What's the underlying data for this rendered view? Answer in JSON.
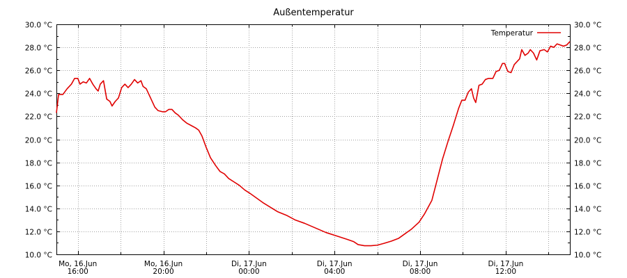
{
  "chart_data": {
    "type": "line",
    "title": "Außentemperatur",
    "x_ticks": [
      {
        "day": "Mo, 16.Jun",
        "time": "16:00",
        "t": 0
      },
      {
        "day": "Mo, 16.Jun",
        "time": "20:00",
        "t": 4
      },
      {
        "day": "Di, 17.Jun",
        "time": "00:00",
        "t": 8
      },
      {
        "day": "Di, 17.Jun",
        "time": "04:00",
        "t": 12
      },
      {
        "day": "Di, 17.Jun",
        "time": "08:00",
        "t": 16
      },
      {
        "day": "Di, 17.Jun",
        "time": "12:00",
        "t": 20
      }
    ],
    "xlim": [
      -1,
      23
    ],
    "y_unit": "°C",
    "ylim": [
      10,
      30
    ],
    "y_tick_step": 2,
    "grid": true,
    "legend_position": "top-right",
    "line_color": "#e00000",
    "series": [
      {
        "name": "Temperatur",
        "points": [
          [
            -1.0,
            22.3
          ],
          [
            -0.9,
            23.9
          ],
          [
            -0.7,
            23.9
          ],
          [
            -0.5,
            24.4
          ],
          [
            -0.3,
            24.8
          ],
          [
            -0.15,
            25.3
          ],
          [
            0.0,
            25.3
          ],
          [
            0.1,
            24.8
          ],
          [
            0.25,
            25.0
          ],
          [
            0.4,
            24.9
          ],
          [
            0.55,
            25.3
          ],
          [
            0.7,
            24.8
          ],
          [
            0.85,
            24.4
          ],
          [
            0.95,
            24.2
          ],
          [
            1.05,
            24.8
          ],
          [
            1.2,
            25.1
          ],
          [
            1.35,
            23.5
          ],
          [
            1.5,
            23.3
          ],
          [
            1.6,
            22.9
          ],
          [
            1.75,
            23.3
          ],
          [
            1.9,
            23.6
          ],
          [
            2.05,
            24.5
          ],
          [
            2.2,
            24.8
          ],
          [
            2.35,
            24.5
          ],
          [
            2.5,
            24.8
          ],
          [
            2.65,
            25.2
          ],
          [
            2.8,
            24.9
          ],
          [
            2.95,
            25.1
          ],
          [
            3.05,
            24.6
          ],
          [
            3.2,
            24.4
          ],
          [
            3.4,
            23.6
          ],
          [
            3.6,
            22.8
          ],
          [
            3.75,
            22.5
          ],
          [
            3.95,
            22.4
          ],
          [
            4.1,
            22.4
          ],
          [
            4.25,
            22.6
          ],
          [
            4.4,
            22.6
          ],
          [
            4.55,
            22.3
          ],
          [
            4.7,
            22.1
          ],
          [
            4.9,
            21.7
          ],
          [
            5.1,
            21.4
          ],
          [
            5.3,
            21.2
          ],
          [
            5.5,
            21.0
          ],
          [
            5.65,
            20.8
          ],
          [
            5.8,
            20.3
          ],
          [
            6.0,
            19.3
          ],
          [
            6.2,
            18.4
          ],
          [
            6.45,
            17.7
          ],
          [
            6.65,
            17.2
          ],
          [
            6.85,
            17.0
          ],
          [
            7.05,
            16.6
          ],
          [
            7.3,
            16.3
          ],
          [
            7.55,
            16.0
          ],
          [
            7.8,
            15.6
          ],
          [
            8.05,
            15.3
          ],
          [
            8.35,
            14.9
          ],
          [
            8.65,
            14.5
          ],
          [
            9.0,
            14.1
          ],
          [
            9.35,
            13.7
          ],
          [
            9.75,
            13.4
          ],
          [
            10.15,
            13.0
          ],
          [
            10.6,
            12.7
          ],
          [
            11.1,
            12.3
          ],
          [
            11.6,
            11.9
          ],
          [
            12.1,
            11.6
          ],
          [
            12.6,
            11.3
          ],
          [
            12.9,
            11.1
          ],
          [
            13.1,
            10.85
          ],
          [
            13.4,
            10.75
          ],
          [
            13.7,
            10.75
          ],
          [
            14.0,
            10.8
          ],
          [
            14.3,
            10.95
          ],
          [
            14.65,
            11.15
          ],
          [
            15.0,
            11.4
          ],
          [
            15.3,
            11.8
          ],
          [
            15.6,
            12.2
          ],
          [
            15.95,
            12.8
          ],
          [
            16.2,
            13.5
          ],
          [
            16.55,
            14.7
          ],
          [
            16.8,
            16.5
          ],
          [
            17.05,
            18.3
          ],
          [
            17.3,
            19.8
          ],
          [
            17.55,
            21.2
          ],
          [
            17.8,
            22.7
          ],
          [
            17.95,
            23.4
          ],
          [
            18.1,
            23.4
          ],
          [
            18.25,
            24.1
          ],
          [
            18.4,
            24.4
          ],
          [
            18.5,
            23.6
          ],
          [
            18.6,
            23.2
          ],
          [
            18.75,
            24.7
          ],
          [
            18.9,
            24.8
          ],
          [
            19.05,
            25.2
          ],
          [
            19.2,
            25.3
          ],
          [
            19.4,
            25.3
          ],
          [
            19.55,
            25.9
          ],
          [
            19.7,
            26.0
          ],
          [
            19.85,
            26.6
          ],
          [
            19.95,
            26.6
          ],
          [
            20.1,
            25.9
          ],
          [
            20.25,
            25.8
          ],
          [
            20.4,
            26.5
          ],
          [
            20.55,
            26.8
          ],
          [
            20.65,
            27.0
          ],
          [
            20.75,
            27.8
          ],
          [
            20.9,
            27.3
          ],
          [
            21.05,
            27.5
          ],
          [
            21.15,
            27.8
          ],
          [
            21.3,
            27.5
          ],
          [
            21.45,
            26.9
          ],
          [
            21.6,
            27.7
          ],
          [
            21.8,
            27.8
          ],
          [
            21.95,
            27.6
          ],
          [
            22.1,
            28.1
          ],
          [
            22.25,
            28.0
          ],
          [
            22.4,
            28.3
          ],
          [
            22.55,
            28.2
          ],
          [
            22.7,
            28.1
          ],
          [
            22.85,
            28.2
          ],
          [
            23.0,
            28.5
          ]
        ]
      }
    ]
  }
}
